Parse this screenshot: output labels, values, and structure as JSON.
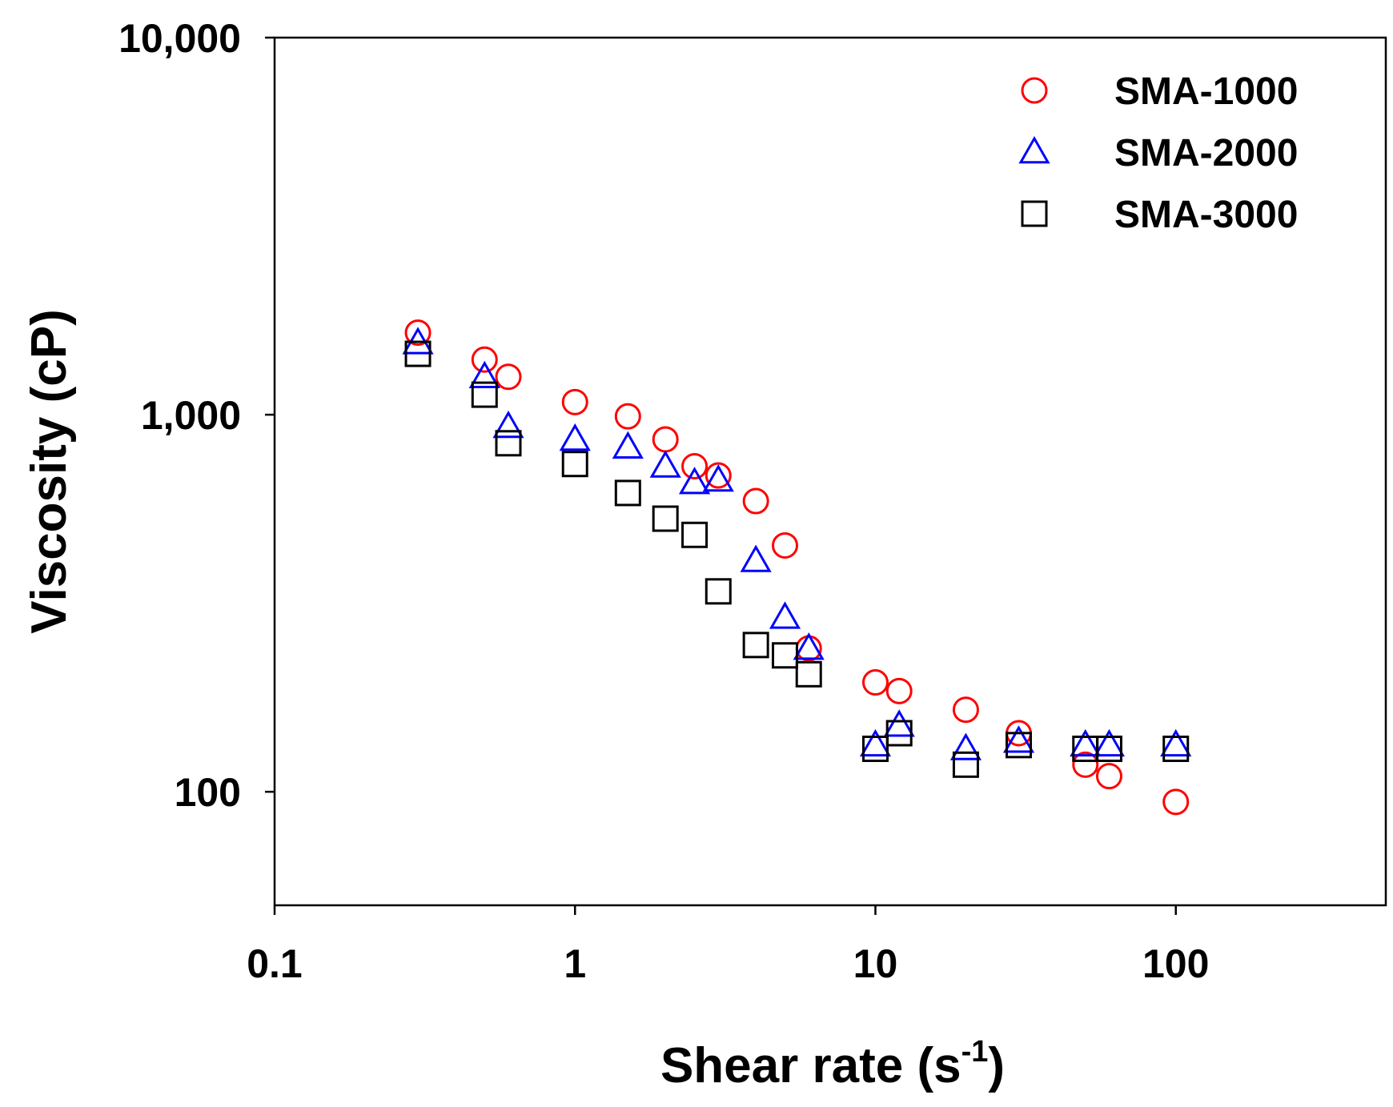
{
  "chart_data": {
    "type": "scatter",
    "xlabel": "Shear rate (s",
    "xlabel_superscript": "-1",
    "xlabel_suffix": ")",
    "ylabel": "Viscosity (cP)",
    "x_scale": "log",
    "y_scale": "log",
    "xlim": [
      0.1,
      500
    ],
    "ylim": [
      50,
      10000
    ],
    "x_ticks": [
      {
        "value": 0.1,
        "label": "0.1"
      },
      {
        "value": 1,
        "label": "1"
      },
      {
        "value": 10,
        "label": "10"
      },
      {
        "value": 100,
        "label": "100"
      }
    ],
    "y_ticks": [
      {
        "value": 100,
        "label": "100"
      },
      {
        "value": 1000,
        "label": "1,000"
      },
      {
        "value": 10000,
        "label": "10,000"
      }
    ],
    "grid": false,
    "legend_position": "top-right",
    "series": [
      {
        "name": "SMA-1000",
        "marker": "circle",
        "color": "#ff0000",
        "x": [
          0.3,
          0.5,
          0.6,
          1,
          1.5,
          2,
          2.5,
          3,
          4,
          5,
          6,
          10,
          12,
          20,
          30,
          50,
          60,
          100
        ],
        "y": [
          1650,
          1400,
          1260,
          1080,
          990,
          860,
          730,
          690,
          590,
          450,
          240,
          195,
          185,
          165,
          143,
          118,
          110,
          94
        ]
      },
      {
        "name": "SMA-2000",
        "marker": "triangle",
        "color": "#0000ff",
        "x": [
          0.3,
          0.5,
          0.6,
          1,
          1.5,
          2,
          2.5,
          3,
          4,
          5,
          6,
          10,
          12,
          20,
          30,
          50,
          60,
          100
        ],
        "y": [
          1550,
          1260,
          930,
          860,
          820,
          730,
          660,
          670,
          410,
          290,
          240,
          133,
          150,
          130,
          136,
          133,
          133,
          133
        ]
      },
      {
        "name": "SMA-3000",
        "marker": "square",
        "color": "#000000",
        "x": [
          0.3,
          0.5,
          0.6,
          1,
          1.5,
          2,
          2.5,
          3,
          4,
          5,
          6,
          10,
          12,
          20,
          30,
          50,
          60,
          100
        ],
        "y": [
          1450,
          1130,
          840,
          740,
          620,
          530,
          480,
          340,
          245,
          230,
          205,
          130,
          143,
          118,
          133,
          130,
          130,
          130
        ]
      }
    ]
  }
}
